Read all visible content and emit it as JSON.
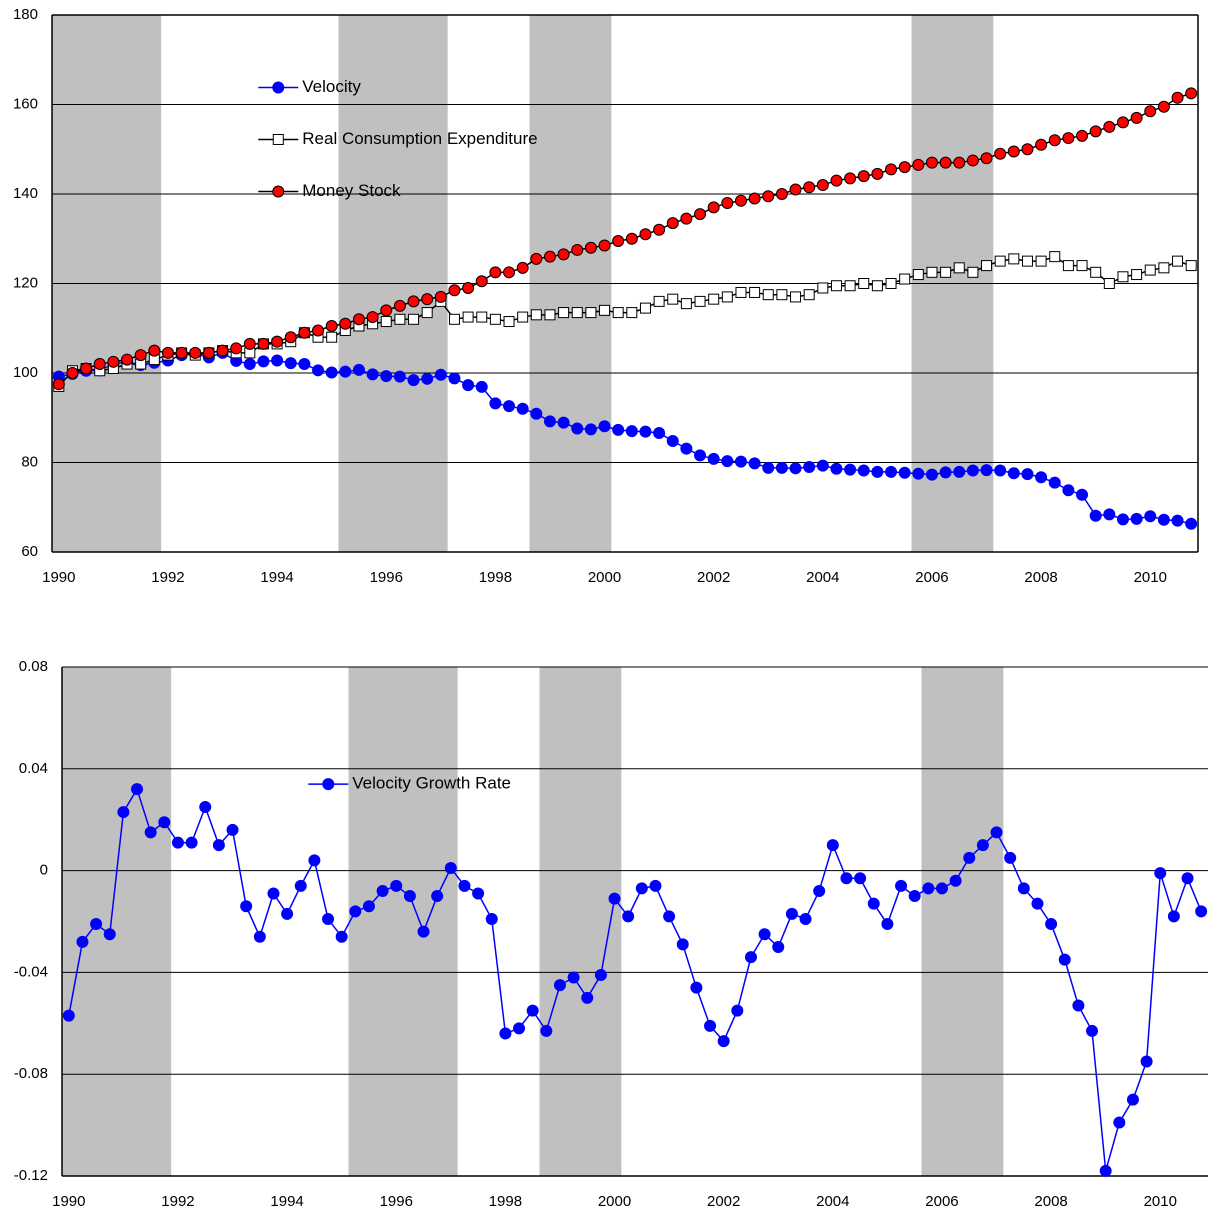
{
  "chart_data": [
    {
      "type": "line",
      "categories": [
        "1990",
        null,
        null,
        null,
        null,
        null,
        null,
        null,
        "1992",
        null,
        null,
        null,
        null,
        null,
        null,
        null,
        "1994",
        null,
        null,
        null,
        null,
        null,
        null,
        null,
        "1996",
        null,
        null,
        null,
        null,
        null,
        null,
        null,
        "1998",
        null,
        null,
        null,
        null,
        null,
        null,
        null,
        "2000",
        null,
        null,
        null,
        null,
        null,
        null,
        null,
        "2002",
        null,
        null,
        null,
        null,
        null,
        null,
        null,
        "2004",
        null,
        null,
        null,
        null,
        null,
        null,
        null,
        "2006",
        null,
        null,
        null,
        null,
        null,
        null,
        null,
        "2008",
        null,
        null,
        null,
        null,
        null,
        null,
        null,
        "2010",
        null,
        null,
        null
      ],
      "series": [
        {
          "name": "Velocity",
          "color": "#0000ff",
          "marker": "circle",
          "marker_fill": "#0000ff",
          "values": [
            99.2,
            99.8,
            100.5,
            100.6,
            102.0,
            102.5,
            101.8,
            102.3,
            102.8,
            104.0,
            104.2,
            103.5,
            104.5,
            102.7,
            102.0,
            102.6,
            102.8,
            102.2,
            102.0,
            100.6,
            100.1,
            100.3,
            100.7,
            99.7,
            99.3,
            99.2,
            98.4,
            98.7,
            99.6,
            98.8,
            97.3,
            96.9,
            93.2,
            92.6,
            92.0,
            90.9,
            89.2,
            88.9,
            87.6,
            87.4,
            88.1,
            87.3,
            87.0,
            86.9,
            86.6,
            84.8,
            83.1,
            81.6,
            80.8,
            80.3,
            80.2,
            79.8,
            78.8,
            78.8,
            78.7,
            79.0,
            79.3,
            78.6,
            78.4,
            78.2,
            77.9,
            77.9,
            77.7,
            77.5,
            77.3,
            77.8,
            77.9,
            78.2,
            78.3,
            78.2,
            77.6,
            77.4,
            76.7,
            75.5,
            73.8,
            72.8,
            68.1,
            68.4,
            67.3,
            67.4,
            68.0,
            67.2,
            67.0,
            66.3
          ]
        },
        {
          "name": "Real Consumption Expenditure",
          "color": "#000000",
          "marker": "square",
          "marker_fill": "#ffffff",
          "values": [
            97.0,
            100.5,
            101.0,
            100.5,
            101.0,
            102.0,
            102.0,
            103.0,
            104.0,
            104.5,
            104.0,
            104.5,
            105.0,
            104.5,
            104.5,
            106.5,
            106.5,
            107.0,
            109.0,
            108.0,
            108.0,
            109.5,
            110.5,
            111.0,
            111.5,
            112.0,
            112.0,
            113.5,
            116.0,
            112.0,
            112.5,
            112.5,
            112.0,
            111.5,
            112.5,
            113.0,
            113.0,
            113.5,
            113.5,
            113.5,
            114.0,
            113.5,
            113.5,
            114.5,
            116.0,
            116.5,
            115.5,
            116.0,
            116.5,
            117.0,
            118.0,
            118.0,
            117.5,
            117.5,
            117.0,
            117.5,
            119.0,
            119.5,
            119.5,
            120.0,
            119.5,
            120.0,
            121.0,
            122.0,
            122.5,
            122.5,
            123.5,
            122.5,
            124.0,
            125.0,
            125.5,
            125.0,
            125.0,
            126.0,
            124.0,
            124.0,
            122.5,
            120.0,
            121.5,
            122.0,
            123.0,
            123.5,
            125.0,
            124.0
          ]
        },
        {
          "name": "Money Stock",
          "color": "#000000",
          "marker": "circle",
          "marker_fill": "#ff0000",
          "values": [
            97.5,
            100.0,
            101.0,
            102.0,
            102.5,
            103.0,
            104.0,
            105.0,
            104.5,
            104.5,
            104.5,
            104.5,
            105.0,
            105.5,
            106.5,
            106.5,
            107.0,
            108.0,
            109.0,
            109.5,
            110.5,
            111.0,
            112.0,
            112.5,
            114.0,
            115.0,
            116.0,
            116.5,
            117.0,
            118.5,
            119.0,
            120.5,
            122.5,
            122.5,
            123.5,
            125.5,
            126.0,
            126.5,
            127.5,
            128.0,
            128.5,
            129.5,
            130.0,
            131.0,
            132.0,
            133.5,
            134.5,
            135.5,
            137.0,
            138.0,
            138.5,
            139.0,
            139.5,
            140.0,
            141.0,
            141.5,
            142.0,
            143.0,
            143.5,
            144.0,
            144.5,
            145.5,
            146.0,
            146.5,
            147.0,
            147.0,
            147.0,
            147.5,
            148.0,
            149.0,
            149.5,
            150.0,
            151.0,
            152.0,
            152.5,
            153.0,
            154.0,
            155.0,
            156.0,
            157.0,
            158.5,
            159.5,
            161.5,
            162.5
          ]
        }
      ],
      "ylim": [
        60,
        180
      ],
      "yticks": [
        60,
        80,
        100,
        120,
        140,
        160,
        180
      ],
      "grid": true,
      "frame": true,
      "shaded": [
        [
          0,
          8
        ],
        [
          21,
          29
        ],
        [
          35,
          41
        ],
        [
          63,
          69
        ]
      ],
      "shade_color": "#c0c0c0",
      "legend": "upper left"
    },
    {
      "type": "line",
      "categories": [
        "1990",
        null,
        null,
        null,
        null,
        null,
        null,
        null,
        "1992",
        null,
        null,
        null,
        null,
        null,
        null,
        null,
        "1994",
        null,
        null,
        null,
        null,
        null,
        null,
        null,
        "1996",
        null,
        null,
        null,
        null,
        null,
        null,
        null,
        "1998",
        null,
        null,
        null,
        null,
        null,
        null,
        null,
        "2000",
        null,
        null,
        null,
        null,
        null,
        null,
        null,
        "2002",
        null,
        null,
        null,
        null,
        null,
        null,
        null,
        "2004",
        null,
        null,
        null,
        null,
        null,
        null,
        null,
        "2006",
        null,
        null,
        null,
        null,
        null,
        null,
        null,
        "2008",
        null,
        null,
        null,
        null,
        null,
        null,
        null,
        "2010",
        null,
        null,
        null
      ],
      "series": [
        {
          "name": "Velocity Growth Rate",
          "color": "#0000ff",
          "marker": "circle",
          "marker_fill": "#0000ff",
          "values": [
            -0.057,
            -0.028,
            -0.021,
            -0.025,
            0.023,
            0.032,
            0.015,
            0.019,
            0.011,
            0.011,
            0.025,
            0.01,
            0.016,
            -0.014,
            -0.026,
            -0.009,
            -0.017,
            -0.006,
            0.004,
            -0.019,
            -0.026,
            -0.016,
            -0.014,
            -0.008,
            -0.006,
            -0.01,
            -0.024,
            -0.01,
            0.001,
            -0.006,
            -0.009,
            -0.019,
            -0.064,
            -0.062,
            -0.055,
            -0.063,
            -0.045,
            -0.042,
            -0.05,
            -0.041,
            -0.011,
            -0.018,
            -0.007,
            -0.006,
            -0.018,
            -0.029,
            -0.046,
            -0.061,
            -0.067,
            -0.055,
            -0.034,
            -0.025,
            -0.03,
            -0.017,
            -0.019,
            -0.008,
            0.01,
            -0.003,
            -0.003,
            -0.013,
            -0.021,
            -0.006,
            -0.01,
            -0.007,
            -0.007,
            -0.004,
            0.005,
            0.01,
            0.015,
            0.005,
            -0.007,
            -0.013,
            -0.021,
            -0.035,
            -0.053,
            -0.063,
            -0.118,
            -0.099,
            -0.09,
            -0.075,
            -0.001,
            -0.018,
            -0.003,
            -0.016
          ]
        }
      ],
      "ylim": [
        -0.12,
        0.08
      ],
      "yticks": [
        -0.12,
        -0.08,
        -0.04,
        0,
        0.04,
        0.08
      ],
      "grid": true,
      "frame": false,
      "shaded": [
        [
          0,
          8
        ],
        [
          21,
          29
        ],
        [
          35,
          41
        ],
        [
          63,
          69
        ]
      ],
      "shade_color": "#c0c0c0",
      "legend": "upper left"
    }
  ]
}
